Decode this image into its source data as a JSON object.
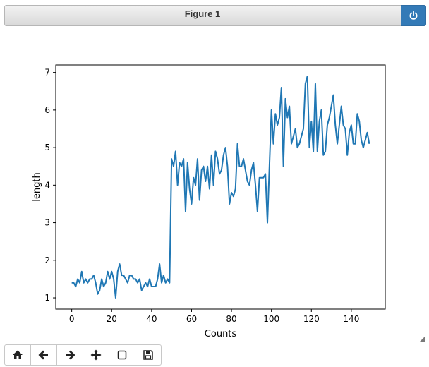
{
  "window": {
    "title": "Figure 1"
  },
  "toolbar": {
    "buttons": [
      {
        "name": "home-button",
        "icon": "home-icon"
      },
      {
        "name": "back-button",
        "icon": "arrow-left-icon"
      },
      {
        "name": "forward-button",
        "icon": "arrow-right-icon"
      },
      {
        "name": "pan-button",
        "icon": "move-icon"
      },
      {
        "name": "zoom-button",
        "icon": "zoom-rect-icon"
      },
      {
        "name": "save-button",
        "icon": "save-icon"
      }
    ]
  },
  "colors": {
    "line": "#1f77b4",
    "power_button": "#337ab7"
  },
  "chart_data": {
    "type": "line",
    "xlabel": "Counts",
    "ylabel": "length",
    "xlim": [
      -8,
      157
    ],
    "ylim": [
      0.7,
      7.2
    ],
    "xticks": [
      0,
      20,
      40,
      60,
      80,
      100,
      120,
      140
    ],
    "yticks": [
      1,
      2,
      3,
      4,
      5,
      6,
      7
    ],
    "grid": false,
    "series": [
      {
        "values": [
          1.4,
          1.4,
          1.3,
          1.5,
          1.4,
          1.7,
          1.4,
          1.5,
          1.4,
          1.5,
          1.5,
          1.6,
          1.4,
          1.1,
          1.2,
          1.5,
          1.3,
          1.4,
          1.7,
          1.5,
          1.7,
          1.5,
          1.0,
          1.7,
          1.9,
          1.6,
          1.6,
          1.5,
          1.4,
          1.6,
          1.6,
          1.5,
          1.5,
          1.4,
          1.5,
          1.2,
          1.3,
          1.4,
          1.3,
          1.5,
          1.3,
          1.3,
          1.3,
          1.5,
          1.9,
          1.4,
          1.6,
          1.4,
          1.5,
          1.4,
          4.7,
          4.5,
          4.9,
          4.0,
          4.6,
          4.5,
          4.7,
          3.3,
          4.6,
          3.9,
          3.5,
          4.2,
          4.0,
          4.7,
          3.6,
          4.4,
          4.5,
          4.1,
          4.5,
          3.9,
          4.8,
          4.0,
          4.9,
          4.7,
          4.3,
          4.4,
          4.8,
          5.0,
          4.5,
          3.5,
          3.8,
          3.7,
          3.9,
          5.1,
          4.5,
          4.5,
          4.7,
          4.4,
          4.1,
          4.0,
          4.4,
          4.6,
          4.0,
          3.3,
          4.2,
          4.2,
          4.2,
          4.3,
          3.0,
          4.5,
          6.0,
          5.1,
          5.9,
          5.6,
          5.8,
          6.6,
          4.5,
          6.3,
          5.8,
          6.1,
          5.1,
          5.3,
          5.5,
          5.0,
          5.1,
          5.3,
          5.5,
          6.7,
          6.9,
          5.0,
          5.7,
          4.9,
          6.7,
          4.9,
          5.7,
          6.0,
          4.8,
          4.9,
          5.6,
          5.8,
          6.1,
          6.4,
          5.6,
          5.1,
          5.6,
          6.1,
          5.6,
          5.5,
          4.8,
          5.4,
          5.6,
          5.1,
          5.1,
          5.9,
          5.7,
          5.2,
          5.0,
          5.2,
          5.4,
          5.1
        ]
      }
    ]
  }
}
